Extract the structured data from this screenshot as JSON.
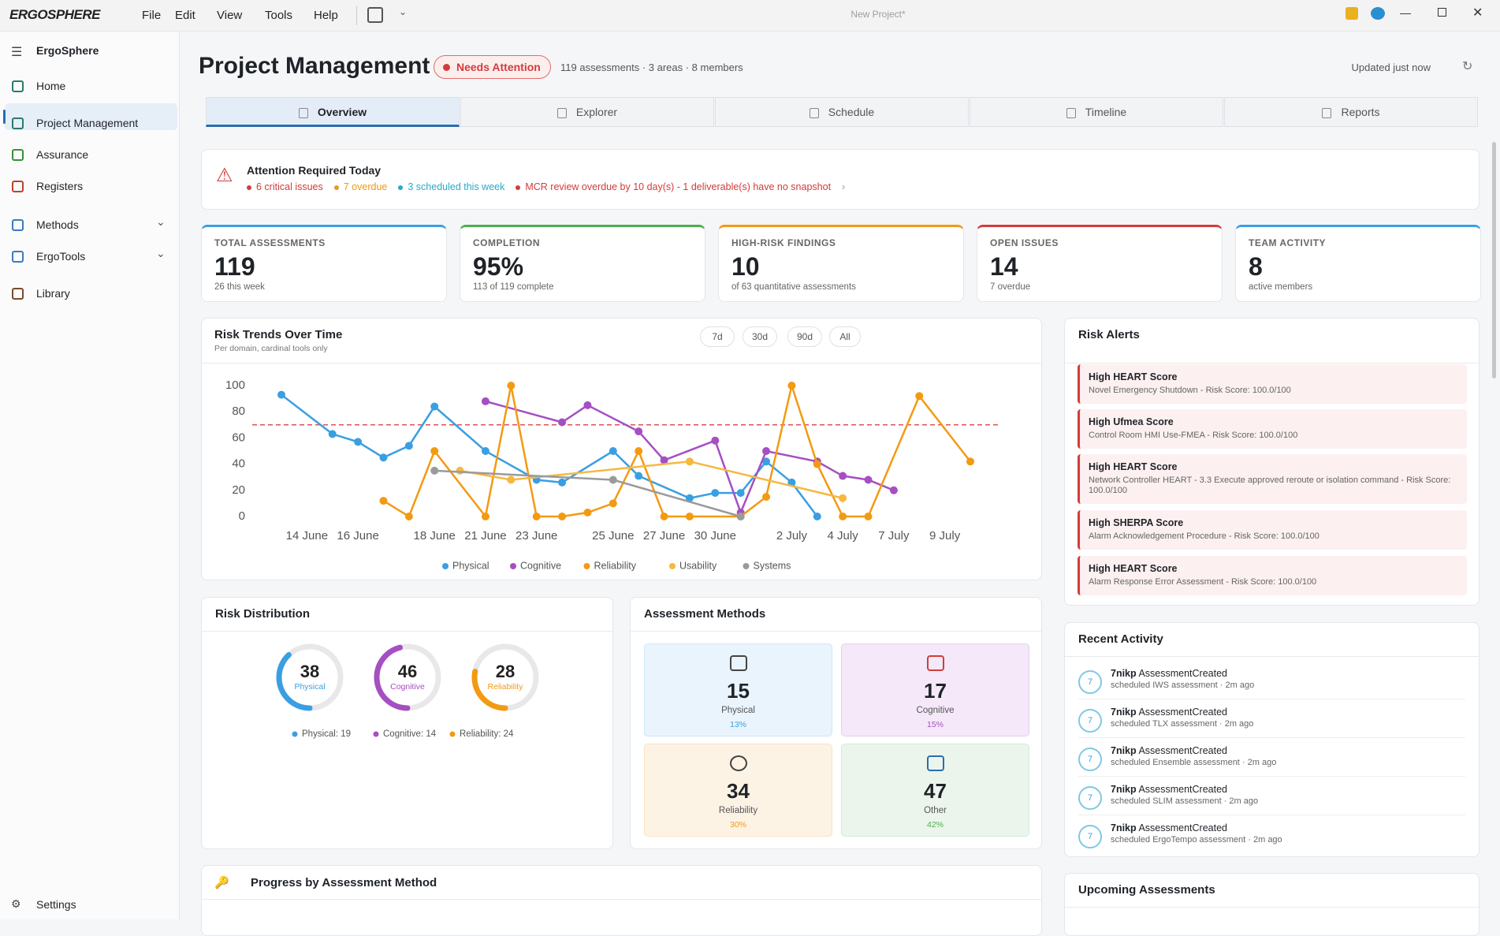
{
  "titlebar": {
    "logo": "ERGOSPHERE",
    "menu": [
      "File",
      "Edit",
      "View",
      "Tools",
      "Help"
    ],
    "document": "New Project*"
  },
  "sidebar": {
    "app": "ErgoSphere",
    "items": [
      "Home",
      "Project Management",
      "Assurance",
      "Registers",
      "Methods",
      "ErgoTools",
      "Library"
    ],
    "settings": "Settings"
  },
  "header": {
    "title": "Project Management",
    "badge": "Needs Attention",
    "meta": "119 assessments · 3 areas · 8 members",
    "updated": "Updated just now"
  },
  "tabs": [
    "Overview",
    "Explorer",
    "Schedule",
    "Timeline",
    "Reports"
  ],
  "attention": {
    "title": "Attention Required Today",
    "items": [
      "6 critical issues",
      "7 overdue",
      "3 scheduled this week",
      "MCR review overdue by 10 day(s) - 1 deliverable(s) have no snapshot"
    ]
  },
  "kpis": [
    {
      "label": "TOTAL ASSESSMENTS",
      "value": "119",
      "sub": "26 this week"
    },
    {
      "label": "COMPLETION",
      "value": "95%",
      "sub": "113 of 119 complete"
    },
    {
      "label": "HIGH-RISK FINDINGS",
      "value": "10",
      "sub": "of 63 quantitative assessments"
    },
    {
      "label": "OPEN ISSUES",
      "value": "14",
      "sub": "7 overdue"
    },
    {
      "label": "TEAM ACTIVITY",
      "value": "8",
      "sub": "active members"
    }
  ],
  "chart_data": {
    "type": "line",
    "title": "Risk Trends Over Time",
    "subtitle": "Per domain, cardinal tools only",
    "range_buttons": [
      "7d",
      "30d",
      "90d",
      "All"
    ],
    "xlim": [
      0,
      27
    ],
    "xticks": [
      {
        "value": 1,
        "label": "14 June"
      },
      {
        "value": 3,
        "label": "16 June"
      },
      {
        "value": 6,
        "label": "18 June"
      },
      {
        "value": 8,
        "label": "21 June"
      },
      {
        "value": 10,
        "label": "23 June"
      },
      {
        "value": 13,
        "label": "25 June"
      },
      {
        "value": 15,
        "label": "27 June"
      },
      {
        "value": 17,
        "label": "30 June"
      },
      {
        "value": 20,
        "label": "2 July"
      },
      {
        "value": 22,
        "label": "4 July"
      },
      {
        "value": 24,
        "label": "7 July"
      },
      {
        "value": 26,
        "label": "9 July"
      }
    ],
    "ylim": [
      0,
      100
    ],
    "yticks": [
      0,
      20,
      40,
      60,
      80,
      100
    ],
    "threshold": 70,
    "threshold_color": "#e05252",
    "series": [
      {
        "name": "Physical",
        "color": "#3a9fe2",
        "x": [
          0,
          2,
          3,
          4,
          5,
          6,
          8,
          10,
          11,
          13,
          14,
          16,
          17,
          18,
          19,
          20,
          21
        ],
        "values": [
          93,
          63,
          57,
          45,
          54,
          84,
          50,
          28,
          26,
          50,
          31,
          14,
          18,
          18,
          42,
          26,
          0
        ]
      },
      {
        "name": "Cognitive",
        "color": "#a54fc2",
        "x": [
          8,
          11,
          12,
          14,
          15,
          17,
          18,
          19,
          21,
          22,
          23,
          24
        ],
        "values": [
          88,
          72,
          85,
          65,
          43,
          58,
          3,
          50,
          42,
          31,
          28,
          20
        ]
      },
      {
        "name": "Reliability",
        "color": "#f39a12",
        "x": [
          4,
          5,
          6,
          8,
          9,
          10,
          11,
          12,
          13,
          14,
          15,
          16,
          18,
          19,
          20,
          21,
          22,
          23,
          25,
          27
        ],
        "values": [
          12,
          0,
          50,
          0,
          100,
          0,
          0,
          3,
          10,
          50,
          0,
          0,
          0,
          15,
          100,
          40,
          0,
          0,
          92,
          42
        ]
      },
      {
        "name": "Usability",
        "color": "#f6b843",
        "x": [
          7,
          9,
          16,
          22
        ],
        "values": [
          35,
          28,
          42,
          14
        ]
      },
      {
        "name": "Systems",
        "color": "#9a9a9a",
        "x": [
          6,
          13,
          18
        ],
        "values": [
          35,
          28,
          0
        ]
      }
    ]
  },
  "risk_distribution": {
    "title": "Risk Distribution",
    "gauges": [
      {
        "value": 38,
        "label": "Physical",
        "color": "#3a9fe2"
      },
      {
        "value": 46,
        "label": "Cognitive",
        "color": "#a54fc2"
      },
      {
        "value": 28,
        "label": "Reliability",
        "color": "#f39a12"
      }
    ],
    "legend": [
      "Physical: 19",
      "Cognitive: 14",
      "Reliability: 24"
    ]
  },
  "assessment_methods": {
    "title": "Assessment Methods",
    "tiles": [
      {
        "value": 15,
        "label": "Physical",
        "share": "13%"
      },
      {
        "value": 17,
        "label": "Cognitive",
        "share": "15%"
      },
      {
        "value": 34,
        "label": "Reliability",
        "share": "30%"
      },
      {
        "value": 47,
        "label": "Other",
        "share": "42%"
      }
    ]
  },
  "risk_alerts": {
    "title": "Risk Alerts",
    "items": [
      {
        "title": "High HEART Score",
        "detail": "Novel Emergency Shutdown - Risk Score: 100.0/100"
      },
      {
        "title": "High Ufmea Score",
        "detail": "Control Room HMI Use-FMEA - Risk Score: 100.0/100"
      },
      {
        "title": "High HEART Score",
        "detail": "Network Controller HEART - 3.3 Execute approved reroute or isolation command - Risk Score: 100.0/100"
      },
      {
        "title": "High SHERPA Score",
        "detail": "Alarm Acknowledgement Procedure - Risk Score: 100.0/100"
      },
      {
        "title": "High HEART Score",
        "detail": "Alarm Response Error Assessment - Risk Score: 100.0/100"
      }
    ]
  },
  "recent_activity": {
    "title": "Recent Activity",
    "items": [
      {
        "avatar": "7",
        "user": "7nikp",
        "action": "AssessmentCreated",
        "detail": "scheduled IWS assessment · 2m ago"
      },
      {
        "avatar": "7",
        "user": "7nikp",
        "action": "AssessmentCreated",
        "detail": "scheduled TLX assessment · 2m ago"
      },
      {
        "avatar": "7",
        "user": "7nikp",
        "action": "AssessmentCreated",
        "detail": "scheduled Ensemble assessment · 2m ago"
      },
      {
        "avatar": "7",
        "user": "7nikp",
        "action": "AssessmentCreated",
        "detail": "scheduled SLIM assessment · 2m ago"
      },
      {
        "avatar": "7",
        "user": "7nikp",
        "action": "AssessmentCreated",
        "detail": "scheduled ErgoTempo assessment · 2m ago"
      }
    ]
  },
  "upcoming": {
    "title": "Upcoming Assessments"
  },
  "progress": {
    "title": "Progress by Assessment Method"
  }
}
